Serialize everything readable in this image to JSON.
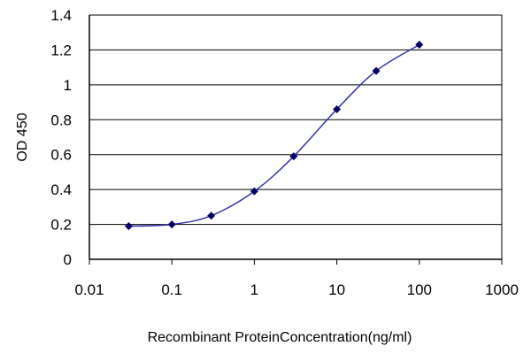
{
  "chart_data": {
    "type": "scatter",
    "title": "",
    "xlabel": "Recombinant ProteinConcentration(ng/ml)",
    "ylabel": "OD 450",
    "x_scale": "log",
    "xlim": [
      0.01,
      1000
    ],
    "ylim": [
      0,
      1.4
    ],
    "x_ticks": [
      0.01,
      0.1,
      1,
      10,
      100,
      1000
    ],
    "x_tick_labels": [
      "0.01",
      "0.1",
      "1",
      "10",
      "100",
      "1000"
    ],
    "y_ticks": [
      0,
      0.2,
      0.4,
      0.6,
      0.8,
      1,
      1.2,
      1.4
    ],
    "y_tick_labels": [
      "0",
      "0.2",
      "0.4",
      "0.6",
      "0.8",
      "1",
      "1.2",
      "1.4"
    ],
    "grid": "horizontal",
    "legend": "none",
    "series": [
      {
        "x": [
          0.03,
          0.1,
          0.3,
          1,
          3,
          10,
          30,
          100
        ],
        "y": [
          0.19,
          0.2,
          0.25,
          0.39,
          0.59,
          0.86,
          1.08,
          1.23
        ],
        "color": "#000066",
        "line_color": "#3333aa",
        "smooth": true
      }
    ]
  }
}
